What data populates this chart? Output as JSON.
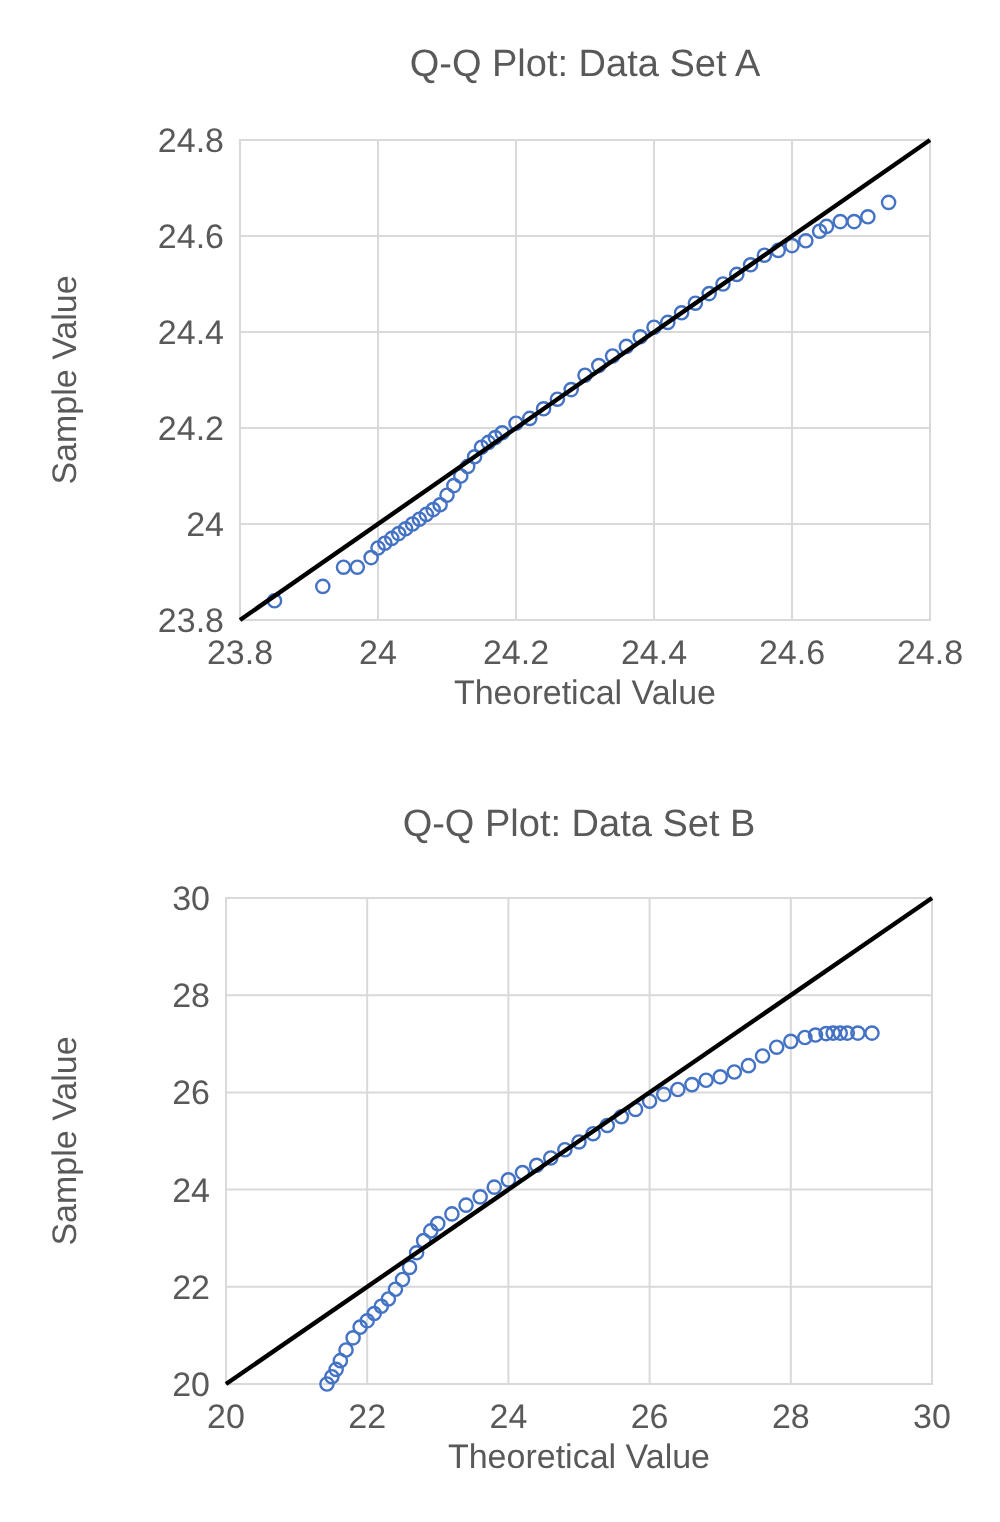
{
  "chart_data": [
    {
      "type": "scatter",
      "title": "Q-Q Plot: Data Set A",
      "xlabel": "Theoretical Value",
      "ylabel": "Sample Value",
      "xlim": [
        23.8,
        24.8
      ],
      "ylim": [
        23.8,
        24.8
      ],
      "xticks": [
        23.8,
        24,
        24.2,
        24.4,
        24.6,
        24.8
      ],
      "yticks": [
        23.8,
        24,
        24.2,
        24.4,
        24.6,
        24.8
      ],
      "grid": true,
      "series": [
        {
          "color": "#4472c4",
          "marker": "circle",
          "x": [
            23.85,
            23.92,
            23.95,
            23.97,
            23.99,
            24.0,
            24.01,
            24.02,
            24.03,
            24.04,
            24.05,
            24.06,
            24.07,
            24.08,
            24.09,
            24.1,
            24.11,
            24.12,
            24.13,
            24.14,
            24.15,
            24.16,
            24.17,
            24.18,
            24.2,
            24.22,
            24.24,
            24.26,
            24.28,
            24.3,
            24.32,
            24.34,
            24.36,
            24.38,
            24.4,
            24.42,
            24.44,
            24.46,
            24.48,
            24.5,
            24.52,
            24.54,
            24.56,
            24.58,
            24.6,
            24.62,
            24.64,
            24.65,
            24.67,
            24.69,
            24.71,
            24.74
          ],
          "values": [
            23.84,
            23.87,
            23.91,
            23.91,
            23.93,
            23.95,
            23.96,
            23.97,
            23.98,
            23.99,
            24.0,
            24.01,
            24.02,
            24.03,
            24.04,
            24.06,
            24.08,
            24.1,
            24.12,
            24.14,
            24.16,
            24.17,
            24.18,
            24.19,
            24.21,
            24.22,
            24.24,
            24.26,
            24.28,
            24.31,
            24.33,
            24.35,
            24.37,
            24.39,
            24.41,
            24.42,
            24.44,
            24.46,
            24.48,
            24.5,
            24.52,
            24.54,
            24.56,
            24.57,
            24.58,
            24.59,
            24.61,
            24.62,
            24.63,
            24.63,
            24.64,
            24.67
          ]
        },
        {
          "type": "line",
          "color": "#000000",
          "x": [
            23.8,
            24.8
          ],
          "values": [
            23.8,
            24.8
          ]
        }
      ]
    },
    {
      "type": "scatter",
      "title": "Q-Q Plot: Data Set B",
      "xlabel": "Theoretical Value",
      "ylabel": "Sample Value",
      "xlim": [
        20,
        30
      ],
      "ylim": [
        20,
        30
      ],
      "xticks": [
        20,
        22,
        24,
        26,
        28,
        30
      ],
      "yticks": [
        20,
        22,
        24,
        26,
        28,
        30
      ],
      "grid": true,
      "series": [
        {
          "color": "#4472c4",
          "marker": "circle",
          "x": [
            21.43,
            21.5,
            21.56,
            21.62,
            21.7,
            21.8,
            21.9,
            22.0,
            22.1,
            22.2,
            22.3,
            22.4,
            22.5,
            22.6,
            22.7,
            22.8,
            22.9,
            23.0,
            23.2,
            23.4,
            23.6,
            23.8,
            24.0,
            24.2,
            24.4,
            24.6,
            24.8,
            25.0,
            25.2,
            25.4,
            25.6,
            25.8,
            26.0,
            26.2,
            26.4,
            26.6,
            26.8,
            27.0,
            27.2,
            27.4,
            27.6,
            27.8,
            28.0,
            28.2,
            28.35,
            28.5,
            28.6,
            28.7,
            28.8,
            28.95,
            29.15
          ],
          "values": [
            20.0,
            20.15,
            20.3,
            20.48,
            20.7,
            20.95,
            21.17,
            21.3,
            21.45,
            21.6,
            21.75,
            21.95,
            22.15,
            22.4,
            22.7,
            22.95,
            23.15,
            23.3,
            23.5,
            23.68,
            23.85,
            24.05,
            24.2,
            24.35,
            24.5,
            24.65,
            24.82,
            24.98,
            25.15,
            25.32,
            25.5,
            25.65,
            25.82,
            25.96,
            26.06,
            26.16,
            26.25,
            26.32,
            26.42,
            26.55,
            26.75,
            26.93,
            27.05,
            27.13,
            27.18,
            27.21,
            27.22,
            27.22,
            27.22,
            27.22,
            27.22
          ]
        },
        {
          "type": "line",
          "color": "#000000",
          "x": [
            20,
            30
          ],
          "values": [
            20,
            30
          ]
        }
      ]
    }
  ]
}
